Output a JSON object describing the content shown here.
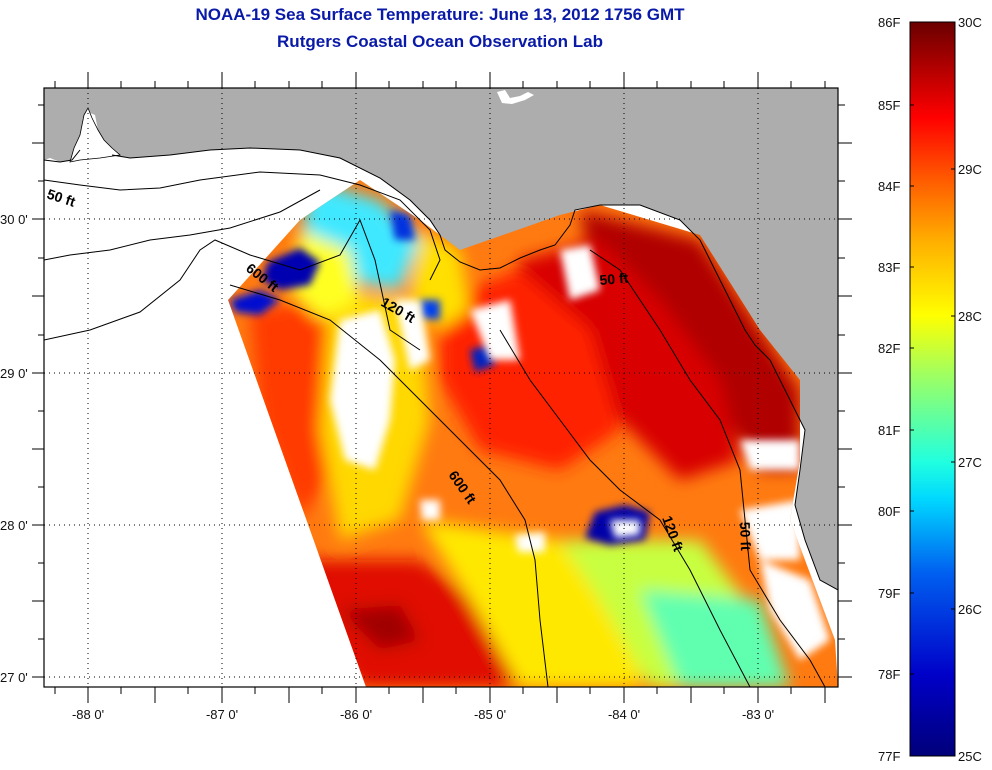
{
  "header": {
    "title": "NOAA-19 Sea Surface Temperature:  June 13, 2012 1756 GMT",
    "subtitle": "Rutgers Coastal Ocean Observation Lab"
  },
  "map": {
    "type": "sea-surface-temperature-map",
    "x_axis": {
      "range": [
        -88.33,
        -82.4
      ],
      "ticks": [
        -88,
        -87,
        -86,
        -85,
        -84,
        -83
      ],
      "tick_labels": [
        "-88 0'",
        "-87 0'",
        "-86 0'",
        "-85 0'",
        "-84 0'",
        "-83 0'"
      ]
    },
    "y_axis": {
      "range": [
        26.93,
        30.85
      ],
      "ticks": [
        27,
        28,
        29,
        30
      ],
      "tick_labels": [
        "27 0'",
        "28 0'",
        "29 0'",
        "30 0'"
      ]
    },
    "grid": "dotted",
    "contour_labels": [
      "50 ft",
      "600 ft",
      "120 ft",
      "50 ft",
      "600 ft",
      "120 ft",
      "50 ft"
    ],
    "colors": {
      "land": "#adadad",
      "no_data": "#ffffff",
      "title": "#0a1aa8"
    }
  },
  "colorbar": {
    "fahrenheit_labels": [
      "86F",
      "85F",
      "84F",
      "83F",
      "82F",
      "81F",
      "80F",
      "79F",
      "78F",
      "77F"
    ],
    "fahrenheit_values": [
      86,
      85,
      84,
      83,
      82,
      81,
      80,
      79,
      78,
      77
    ],
    "celsius_labels": [
      "30C",
      "29C",
      "28C",
      "27C",
      "26C",
      "25C"
    ],
    "celsius_values": [
      30,
      29,
      28,
      27,
      26,
      25
    ],
    "range_c": [
      25,
      30
    ],
    "stops": [
      "#00008f",
      "#0000ff",
      "#0080ff",
      "#00ffff",
      "#80ff80",
      "#ffff00",
      "#ff8000",
      "#ff0000",
      "#800000"
    ]
  }
}
